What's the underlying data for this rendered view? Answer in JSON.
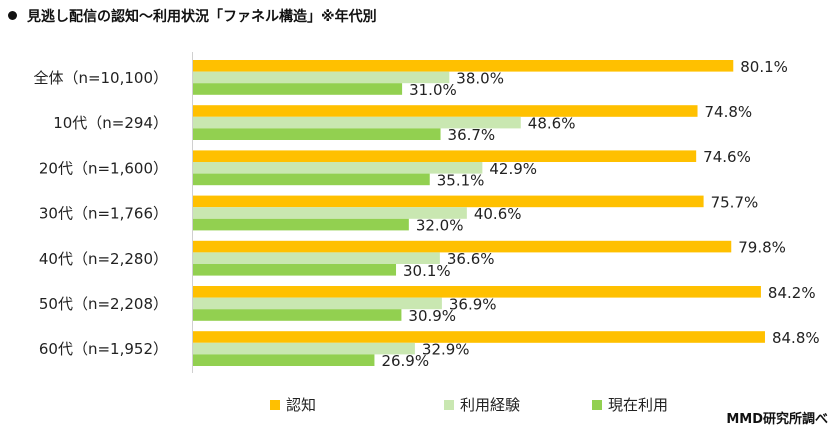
{
  "title": "見逃し配信の認知～利用状況「ファネル構造」※年代別",
  "source": "MMD研究所調べ",
  "chart_data": {
    "type": "bar",
    "orientation": "horizontal",
    "title": "見逃し配信の認知～利用状況「ファネル構造」※年代別",
    "xlabel": "",
    "ylabel": "",
    "xlim": [
      0,
      100
    ],
    "grid": false,
    "legend_position": "bottom",
    "categories": [
      "全体（n=10,100）",
      "10代（n=294）",
      "20代（n=1,600）",
      "30代（n=1,766）",
      "40代（n=2,280）",
      "50代（n=2,208）",
      "60代（n=1,952）"
    ],
    "series": [
      {
        "name": "認知",
        "color": "#FFC000",
        "values": [
          80.1,
          74.8,
          74.6,
          75.7,
          79.8,
          84.2,
          84.8
        ],
        "labels": [
          "80.1%",
          "74.8%",
          "74.6%",
          "75.7%",
          "79.8%",
          "84.2%",
          "84.8%"
        ]
      },
      {
        "name": "利用経験",
        "color": "#C9E7B1",
        "values": [
          38.0,
          48.6,
          42.9,
          40.6,
          36.6,
          36.9,
          32.9
        ],
        "labels": [
          "38.0%",
          "48.6%",
          "42.9%",
          "40.6%",
          "36.6%",
          "36.9%",
          "32.9%"
        ]
      },
      {
        "name": "現在利用",
        "color": "#92D050",
        "values": [
          31.0,
          36.7,
          35.1,
          32.0,
          30.1,
          30.9,
          26.9
        ],
        "labels": [
          "31.0%",
          "36.7%",
          "35.1%",
          "32.0%",
          "30.1%",
          "30.9%",
          "26.9%"
        ]
      }
    ]
  }
}
